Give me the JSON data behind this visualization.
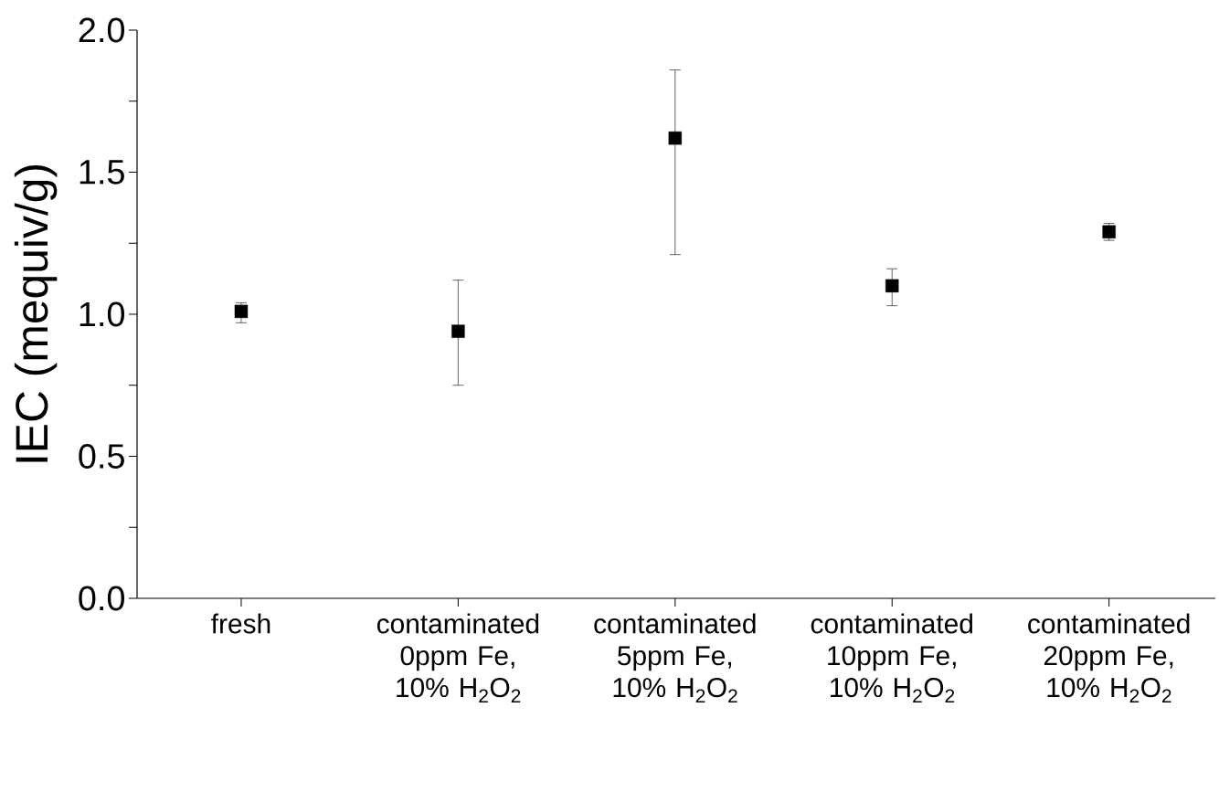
{
  "chart_data": {
    "type": "scatter",
    "ylabel": "IEC (mequiv/g)",
    "categories": [
      "fresh",
      "contaminated 0ppm Fe, 10% H$_{2}$O$_{2}$",
      "contaminated 5ppm Fe, 10% H$_{2}$O$_{2}$",
      "contaminated 10ppm Fe, 10% H$_{2}$O$_{2}$",
      "contaminated 20ppm Fe, 10% H$_{2}$O$_{2}$"
    ],
    "values": [
      1.01,
      0.94,
      1.62,
      1.1,
      1.29
    ],
    "errors": [
      [
        0.97,
        1.04
      ],
      [
        0.75,
        1.12
      ],
      [
        1.21,
        1.86
      ],
      [
        1.03,
        1.16
      ],
      [
        1.26,
        1.32
      ]
    ],
    "color": "#000000",
    "marker": "square",
    "ylim": [
      0,
      2.0
    ],
    "yticks": [
      {
        "value": 0,
        "label": "0.0"
      },
      {
        "value": 0.25,
        "label": null
      },
      {
        "value": 0.5,
        "label": "0.5"
      },
      {
        "value": 0.75,
        "label": null
      },
      {
        "value": 1.0,
        "label": "1.0"
      },
      {
        "value": 1.25,
        "label": null
      },
      {
        "value": 1.5,
        "label": "1.5"
      },
      {
        "value": 1.75,
        "label": null
      },
      {
        "value": 2.0,
        "label": "2.0"
      }
    ],
    "grid": false
  }
}
